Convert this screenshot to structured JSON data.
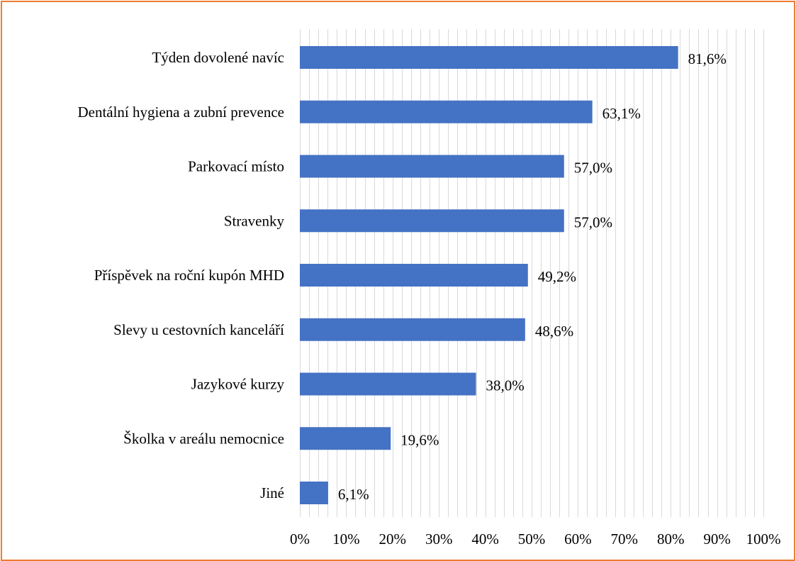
{
  "chart_data": {
    "type": "bar",
    "orientation": "horizontal",
    "categories": [
      "Týden dovolené navíc",
      "Dentální hygiena a zubní prevence",
      "Parkovací místo",
      "Stravenky",
      "Příspěvek na roční kupón MHD",
      "Slevy u cestovních kanceláří",
      "Jazykové kurzy",
      "Školka v areálu nemocnice",
      "Jiné"
    ],
    "values": [
      81.6,
      63.1,
      57.0,
      57.0,
      49.2,
      48.6,
      38.0,
      19.6,
      6.1
    ],
    "data_labels": [
      "81,6%",
      "63,1%",
      "57,0%",
      "57,0%",
      "49,2%",
      "48,6%",
      "38,0%",
      "19,6%",
      "6,1%"
    ],
    "xlim": [
      0,
      100
    ],
    "x_ticks": [
      0,
      10,
      20,
      30,
      40,
      50,
      60,
      70,
      80,
      90,
      100
    ],
    "x_tick_labels": [
      "0%",
      "10%",
      "20%",
      "30%",
      "40%",
      "50%",
      "60%",
      "70%",
      "80%",
      "90%",
      "100%"
    ],
    "title": "",
    "xlabel": "",
    "ylabel": "",
    "grid": "vertical",
    "legend": "none"
  },
  "colors": {
    "bar": "#4472C4",
    "gridline": "#D9D9D9",
    "border": "#ED7D31",
    "text": "#000000"
  }
}
